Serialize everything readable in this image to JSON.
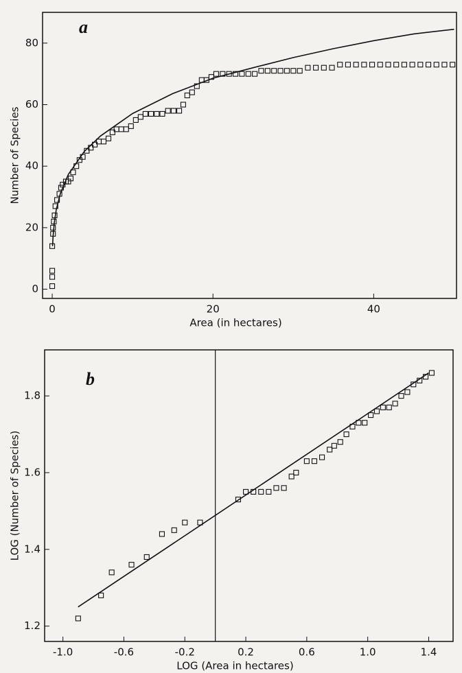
{
  "chart_data": [
    {
      "type": "scatter",
      "panel_label": "a",
      "xlabel": "Area (in hectares)",
      "ylabel": "Number of Species",
      "xlim": [
        -1.2,
        50.3
      ],
      "ylim": [
        -3,
        90
      ],
      "xticks": [
        0,
        20,
        40
      ],
      "yticks": [
        0,
        20,
        40,
        60,
        80
      ],
      "series": [
        {
          "style": "markers",
          "color": "#111",
          "x": [
            0,
            0,
            0,
            0,
            0.1,
            0.1,
            0.2,
            0.3,
            0.4,
            0.6,
            0.9,
            1.1,
            1.3,
            1.7,
            2,
            2.3,
            2.6,
            3,
            3.4,
            3.8,
            4.3,
            4.8,
            5.3,
            5.8,
            6.4,
            7,
            7.5,
            8,
            8.6,
            9.2,
            9.8,
            10.4,
            11,
            11.6,
            12.3,
            13,
            13.7,
            14.4,
            15.1,
            15.8,
            16.3,
            16.8,
            17.4,
            18,
            18.6,
            19.2,
            19.8,
            20.4,
            21.2,
            22,
            22.8,
            23.6,
            24.4,
            25.2,
            26,
            26.8,
            27.6,
            28.4,
            29.2,
            30,
            30.8,
            31.8,
            32.8,
            33.8,
            34.8,
            35.8,
            36.8,
            37.8,
            38.8,
            39.8,
            40.8,
            41.8,
            42.8,
            43.8,
            44.8,
            45.8,
            46.8,
            47.8,
            48.8,
            49.8
          ],
          "values": [
            1,
            4,
            6,
            14,
            18,
            20,
            22,
            24,
            27,
            29,
            31,
            33,
            34,
            35,
            35,
            36,
            38,
            40,
            42,
            43,
            45,
            46,
            47,
            48,
            48,
            49,
            51,
            52,
            52,
            52,
            53,
            55,
            56,
            57,
            57,
            57,
            57,
            58,
            58,
            58,
            60,
            63,
            64,
            66,
            68,
            68,
            69,
            70,
            70,
            70,
            70,
            70,
            70,
            70,
            71,
            71,
            71,
            71,
            71,
            71,
            71,
            72,
            72,
            72,
            72,
            73,
            73,
            73,
            73,
            73,
            73,
            73,
            73,
            73,
            73,
            73,
            73,
            73,
            73,
            73
          ]
        },
        {
          "style": "line",
          "color": "#111",
          "x": [
            0.05,
            0.1,
            0.25,
            0.5,
            1,
            2,
            4,
            6,
            10,
            15,
            20,
            25,
            30,
            35,
            40,
            45,
            50
          ],
          "values": [
            14,
            16.8,
            21.5,
            25.8,
            31,
            37.3,
            44.8,
            49.8,
            57.1,
            63.6,
            68.6,
            72,
            75.3,
            78.2,
            80.8,
            83,
            84.5
          ]
        }
      ]
    },
    {
      "type": "scatter",
      "panel_label": "b",
      "xlabel": "LOG (Area  in hectares)",
      "ylabel": "LOG (Number  of  Species)",
      "xlim": [
        -1.12,
        1.56
      ],
      "ylim": [
        1.16,
        1.92
      ],
      "xticks": [
        {
          "value": -1,
          "label": "-1.0"
        },
        -0.6,
        -0.2,
        0.2,
        0.6,
        {
          "value": 1,
          "label": "1.0"
        },
        1.4
      ],
      "yticks": [
        1.2,
        1.4,
        1.6,
        1.8
      ],
      "series": [
        {
          "style": "markers",
          "color": "#111",
          "x": [
            -0.9,
            -0.75,
            -0.68,
            -0.55,
            -0.45,
            -0.35,
            -0.27,
            -0.2,
            -0.1,
            0.15,
            0.2,
            0.25,
            0.3,
            0.35,
            0.4,
            0.45,
            0.5,
            0.53,
            0.6,
            0.65,
            0.7,
            0.75,
            0.78,
            0.82,
            0.86,
            0.9,
            0.94,
            0.98,
            1.02,
            1.06,
            1.1,
            1.14,
            1.18,
            1.22,
            1.26,
            1.3,
            1.34,
            1.38,
            1.42
          ],
          "values": [
            1.22,
            1.28,
            1.34,
            1.36,
            1.38,
            1.44,
            1.45,
            1.47,
            1.47,
            1.53,
            1.55,
            1.55,
            1.55,
            1.55,
            1.56,
            1.56,
            1.59,
            1.6,
            1.63,
            1.63,
            1.64,
            1.66,
            1.67,
            1.68,
            1.7,
            1.72,
            1.73,
            1.73,
            1.75,
            1.76,
            1.77,
            1.77,
            1.78,
            1.8,
            1.81,
            1.83,
            1.84,
            1.85,
            1.86
          ]
        },
        {
          "style": "line",
          "color": "#111",
          "x": [
            -0.9,
            1.4
          ],
          "values": [
            1.25,
            1.86
          ]
        }
      ]
    }
  ]
}
